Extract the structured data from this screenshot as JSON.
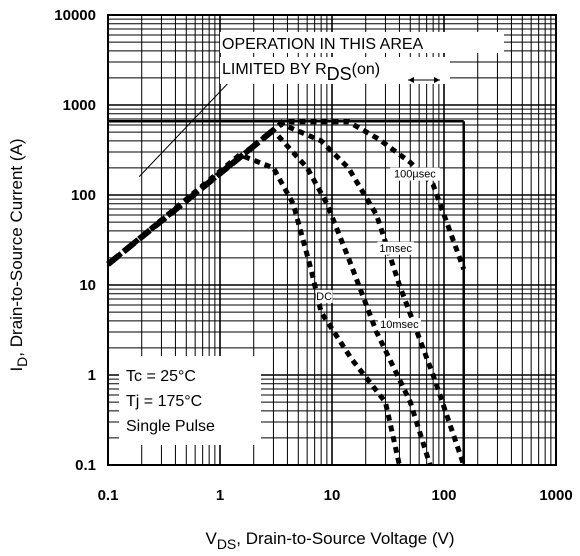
{
  "chart_data": {
    "type": "line",
    "x_scale": "log",
    "y_scale": "log",
    "xlim": [
      0.1,
      1000
    ],
    "ylim": [
      0.1,
      10000
    ],
    "grid": true,
    "xlabel": {
      "main": "V",
      "sub": "DS",
      "rest": ", Drain-to-Source Voltage (V)"
    },
    "ylabel": {
      "main": "I",
      "sub": "D",
      "rest": ",  Drain-to-Source Current (A)"
    },
    "x_ticks": [
      {
        "value": 0.1,
        "label": "0.1"
      },
      {
        "value": 1,
        "label": "1"
      },
      {
        "value": 10,
        "label": "10"
      },
      {
        "value": 100,
        "label": "100"
      },
      {
        "value": 1000,
        "label": "1000"
      }
    ],
    "y_ticks": [
      {
        "value": 0.1,
        "label": "0.1"
      },
      {
        "value": 1,
        "label": "1"
      },
      {
        "value": 10,
        "label": "10"
      },
      {
        "value": 100,
        "label": "100"
      },
      {
        "value": 1000,
        "label": "1000"
      },
      {
        "value": 10000,
        "label": "10000"
      }
    ],
    "boundary": {
      "current_limit": 660,
      "voltage_limit": 150
    },
    "annotation": {
      "line1": "OPERATION IN THIS AREA",
      "line2_main": "LIMITED BY R",
      "line2_sub": "DS",
      "line2_rest": "(on)",
      "arrow_from": [
        1.6,
        2600
      ],
      "arrow_to": [
        0.19,
        160
      ]
    },
    "conditions": [
      "Tc = 25°C",
      "Tj = 175°C",
      "Single Pulse"
    ],
    "rds_on_line": [
      [
        0.1,
        17
      ],
      [
        3.7,
        650
      ]
    ],
    "series": [
      {
        "name": "100µsec",
        "points": [
          [
            0.1,
            17
          ],
          [
            3.7,
            650
          ],
          [
            14,
            650
          ],
          [
            26,
            420
          ],
          [
            50,
            230
          ],
          [
            80,
            130
          ],
          [
            150,
            15
          ]
        ]
      },
      {
        "name": "1msec",
        "points": [
          [
            0.1,
            17
          ],
          [
            3.5,
            620
          ],
          [
            8,
            400
          ],
          [
            14,
            200
          ],
          [
            25,
            60
          ],
          [
            40,
            10
          ],
          [
            80,
            1
          ],
          [
            150,
            0.1
          ]
        ]
      },
      {
        "name": "10msec",
        "points": [
          [
            0.1,
            17
          ],
          [
            3,
            520
          ],
          [
            6,
            200
          ],
          [
            9,
            80
          ],
          [
            14,
            20
          ],
          [
            25,
            3
          ],
          [
            50,
            0.5
          ],
          [
            75,
            0.1
          ]
        ]
      },
      {
        "name": "DC",
        "points": [
          [
            0.1,
            17
          ],
          [
            1.5,
            280
          ],
          [
            3,
            200
          ],
          [
            4.5,
            80
          ],
          [
            6.5,
            15
          ],
          [
            8,
            5
          ],
          [
            15,
            1.5
          ],
          [
            30,
            0.5
          ],
          [
            40,
            0.1
          ]
        ]
      }
    ],
    "series_labels": [
      {
        "name": "100µsec",
        "at": [
          55,
          160
        ]
      },
      {
        "name": "1msec",
        "at": [
          37,
          24
        ]
      },
      {
        "name": "DC",
        "at": [
          8.5,
          7
        ]
      },
      {
        "name": "10msec",
        "at": [
          40,
          3.4
        ]
      }
    ]
  }
}
